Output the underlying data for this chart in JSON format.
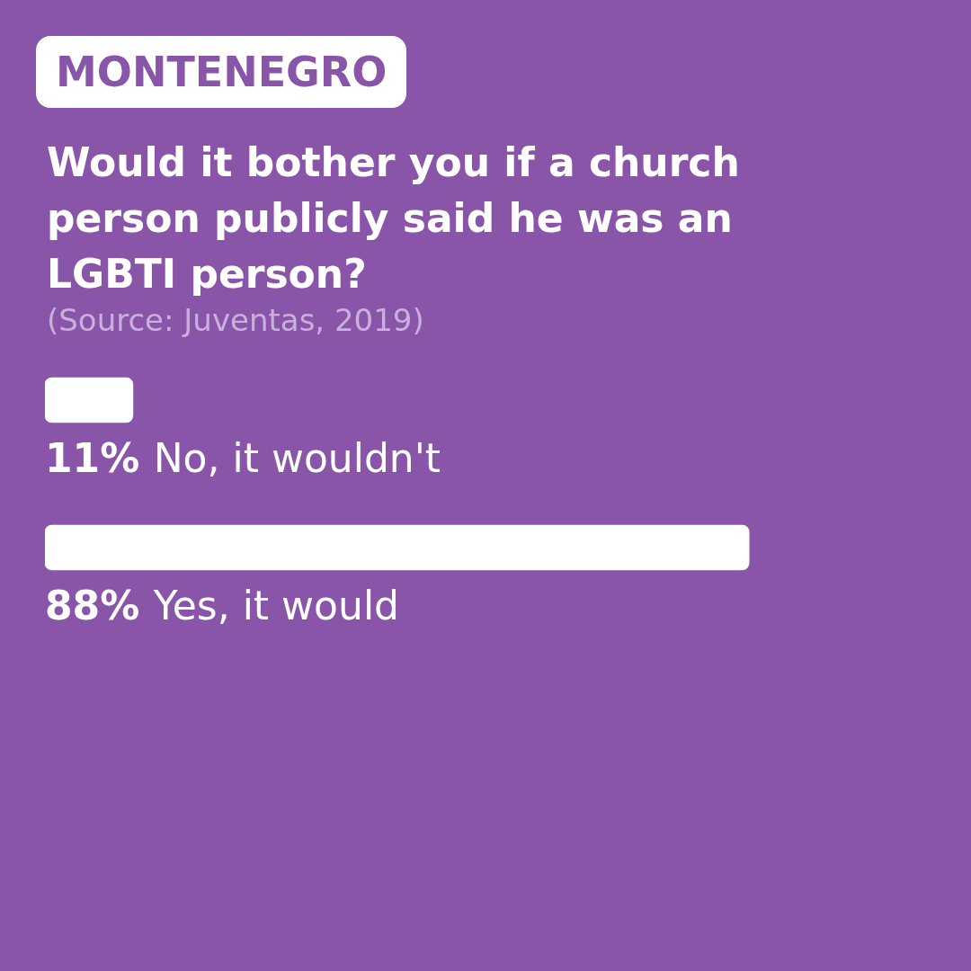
{
  "chart_data": {
    "type": "bar",
    "orientation": "horizontal",
    "subtitle": "MONTENEGRO",
    "title": "Would it bother you if a church person publicly said he was an LGBTI person?",
    "annotations": [
      "(Source: Juventas, 2019)"
    ],
    "categories": [
      "No, it wouldn't",
      "Yes, it would"
    ],
    "series": [
      {
        "color": "#ffffff",
        "values": [
          11,
          88
        ],
        "value_labels": [
          "11%",
          "88%"
        ]
      }
    ],
    "legend": false
  }
}
